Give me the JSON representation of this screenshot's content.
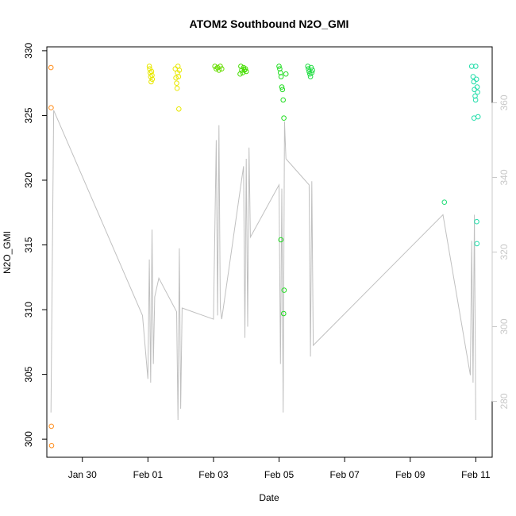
{
  "chart_data": {
    "type": "scatter",
    "title": "ATOM2 Southbound N2O_GMI",
    "xlabel": "Date",
    "ylabel": "N2O_GMI",
    "xlim": [
      "2017-01-28T22:00",
      "2017-02-11T12:00"
    ],
    "ylim": [
      298.6,
      330.3
    ],
    "y2lim": [
      265,
      375
    ],
    "x_ticks": [
      {
        "date": "2017-01-30",
        "label": "Jan 30"
      },
      {
        "date": "2017-02-01",
        "label": "Feb 01"
      },
      {
        "date": "2017-02-03",
        "label": "Feb 03"
      },
      {
        "date": "2017-02-05",
        "label": "Feb 05"
      },
      {
        "date": "2017-02-07",
        "label": "Feb 07"
      },
      {
        "date": "2017-02-09",
        "label": "Feb 09"
      },
      {
        "date": "2017-02-11",
        "label": "Feb 11"
      }
    ],
    "y_ticks": [
      300,
      305,
      310,
      315,
      320,
      325,
      330
    ],
    "y2_ticks": [
      280,
      300,
      320,
      340,
      360
    ],
    "colors": {
      "axes": "#000000",
      "secondary_axis": "#c8c8c8",
      "altitude_line": "#c0c0c0",
      "flight_colors": [
        "#ff8000",
        "#ffff00",
        "#80ff00",
        "#00ff80",
        "#00ffaa"
      ]
    },
    "series": [
      {
        "color": "#ff8c1a",
        "points": [
          [
            "2017-01-29T01:00",
            328.7
          ],
          [
            "2017-01-29T01:10",
            325.6
          ],
          [
            "2017-01-29T01:20",
            301.0
          ],
          [
            "2017-01-29T01:30",
            299.5
          ]
        ]
      },
      {
        "color": "#e8e800",
        "points": [
          [
            "2017-02-01T01:00",
            328.8
          ],
          [
            "2017-02-01T01:20",
            328.6
          ],
          [
            "2017-02-01T01:40",
            328.3
          ],
          [
            "2017-02-01T02:00",
            328.0
          ],
          [
            "2017-02-01T02:20",
            327.6
          ],
          [
            "2017-02-01T02:40",
            328.4
          ],
          [
            "2017-02-01T03:00",
            328.1
          ],
          [
            "2017-02-01T03:10",
            327.8
          ]
        ]
      },
      {
        "color": "#e8e800",
        "points": [
          [
            "2017-02-01T20:00",
            328.6
          ],
          [
            "2017-02-01T20:30",
            327.9
          ],
          [
            "2017-02-01T21:00",
            327.5
          ],
          [
            "2017-02-01T21:20",
            327.1
          ],
          [
            "2017-02-01T21:40",
            328.3
          ],
          [
            "2017-02-01T22:00",
            328.8
          ],
          [
            "2017-02-01T22:20",
            328.0
          ],
          [
            "2017-02-01T22:40",
            325.5
          ],
          [
            "2017-02-01T23:00",
            328.5
          ]
        ]
      },
      {
        "color": "#66dd00",
        "points": [
          [
            "2017-02-03T01:00",
            328.8
          ],
          [
            "2017-02-03T02:00",
            328.6
          ],
          [
            "2017-02-03T03:00",
            328.7
          ],
          [
            "2017-02-03T04:00",
            328.5
          ],
          [
            "2017-02-03T05:00",
            328.8
          ],
          [
            "2017-02-03T06:00",
            328.6
          ]
        ]
      },
      {
        "color": "#44dd00",
        "points": [
          [
            "2017-02-03T20:00",
            328.8
          ],
          [
            "2017-02-03T20:40",
            328.5
          ],
          [
            "2017-02-03T21:20",
            328.3
          ],
          [
            "2017-02-03T22:00",
            328.7
          ],
          [
            "2017-02-03T22:40",
            328.5
          ],
          [
            "2017-02-03T23:20",
            328.6
          ],
          [
            "2017-02-04T00:00",
            328.4
          ],
          [
            "2017-02-03T19:30",
            328.2
          ]
        ]
      },
      {
        "color": "#22dd22",
        "points": [
          [
            "2017-02-05T00:00",
            328.8
          ],
          [
            "2017-02-05T00:30",
            328.6
          ],
          [
            "2017-02-05T01:00",
            328.3
          ],
          [
            "2017-02-05T01:30",
            328.0
          ],
          [
            "2017-02-05T02:00",
            327.2
          ],
          [
            "2017-02-05T02:30",
            327.0
          ],
          [
            "2017-02-05T03:00",
            326.2
          ],
          [
            "2017-02-05T03:30",
            324.8
          ],
          [
            "2017-02-05T01:20",
            315.4
          ],
          [
            "2017-02-05T03:40",
            311.5
          ],
          [
            "2017-02-05T03:20",
            309.7
          ],
          [
            "2017-02-05T05:00",
            328.2
          ]
        ]
      },
      {
        "color": "#22dd44",
        "points": [
          [
            "2017-02-05T21:00",
            328.8
          ],
          [
            "2017-02-05T21:30",
            328.6
          ],
          [
            "2017-02-05T22:00",
            328.4
          ],
          [
            "2017-02-05T22:30",
            328.2
          ],
          [
            "2017-02-05T23:00",
            328.0
          ],
          [
            "2017-02-05T23:30",
            328.7
          ],
          [
            "2017-02-06T00:00",
            328.3
          ],
          [
            "2017-02-06T00:30",
            328.5
          ]
        ]
      },
      {
        "color": "#22dd77",
        "points": [
          [
            "2017-02-10T01:00",
            318.3
          ]
        ]
      },
      {
        "color": "#22ddaa",
        "points": [
          [
            "2017-02-10T21:00",
            328.8
          ],
          [
            "2017-02-10T22:00",
            328.0
          ],
          [
            "2017-02-10T22:30",
            327.6
          ],
          [
            "2017-02-10T23:00",
            327.0
          ],
          [
            "2017-02-10T23:30",
            326.5
          ],
          [
            "2017-02-10T23:50",
            326.2
          ],
          [
            "2017-02-11T00:00",
            328.8
          ],
          [
            "2017-02-11T00:30",
            327.8
          ],
          [
            "2017-02-11T01:00",
            327.2
          ],
          [
            "2017-02-11T01:20",
            326.8
          ],
          [
            "2017-02-11T01:40",
            324.9
          ],
          [
            "2017-02-10T22:40",
            324.8
          ],
          [
            "2017-02-11T00:40",
            316.8
          ],
          [
            "2017-02-11T00:50",
            315.1
          ]
        ]
      }
    ],
    "altitude_line": [
      [
        "2017-01-29T01:00",
        277
      ],
      [
        "2017-01-29T03:00",
        358
      ],
      [
        "2017-01-31T20:00",
        303
      ],
      [
        "2017-02-01T00:00",
        286
      ],
      [
        "2017-02-01T01:00",
        318
      ],
      [
        "2017-02-01T02:00",
        285
      ],
      [
        "2017-02-01T03:00",
        326
      ],
      [
        "2017-02-01T04:00",
        290
      ],
      [
        "2017-02-01T05:00",
        308
      ],
      [
        "2017-02-01T08:00",
        313
      ],
      [
        "2017-02-01T21:00",
        304
      ],
      [
        "2017-02-01T22:00",
        275
      ],
      [
        "2017-02-01T23:00",
        321
      ],
      [
        "2017-02-02T00:00",
        278
      ],
      [
        "2017-02-02T01:00",
        305
      ],
      [
        "2017-02-03T00:00",
        302
      ],
      [
        "2017-02-03T02:00",
        350
      ],
      [
        "2017-02-03T03:00",
        303
      ],
      [
        "2017-02-03T04:00",
        354
      ],
      [
        "2017-02-03T05:00",
        305
      ],
      [
        "2017-02-03T06:00",
        302
      ],
      [
        "2017-02-03T22:00",
        343
      ],
      [
        "2017-02-03T23:00",
        297
      ],
      [
        "2017-02-04T00:00",
        345
      ],
      [
        "2017-02-04T01:00",
        300
      ],
      [
        "2017-02-04T02:00",
        348
      ],
      [
        "2017-02-04T03:00",
        324
      ],
      [
        "2017-02-05T00:00",
        338
      ],
      [
        "2017-02-05T01:00",
        290
      ],
      [
        "2017-02-05T02:00",
        337
      ],
      [
        "2017-02-05T03:00",
        277
      ],
      [
        "2017-02-05T04:00",
        355
      ],
      [
        "2017-02-05T05:00",
        345
      ],
      [
        "2017-02-05T22:00",
        338
      ],
      [
        "2017-02-05T23:00",
        292
      ],
      [
        "2017-02-06T00:00",
        339
      ],
      [
        "2017-02-06T01:00",
        295
      ],
      [
        "2017-02-10T00:00",
        330
      ],
      [
        "2017-02-10T20:00",
        287
      ],
      [
        "2017-02-10T21:00",
        323
      ],
      [
        "2017-02-10T22:00",
        285
      ],
      [
        "2017-02-10T23:00",
        330
      ],
      [
        "2017-02-11T00:00",
        275
      ]
    ]
  }
}
